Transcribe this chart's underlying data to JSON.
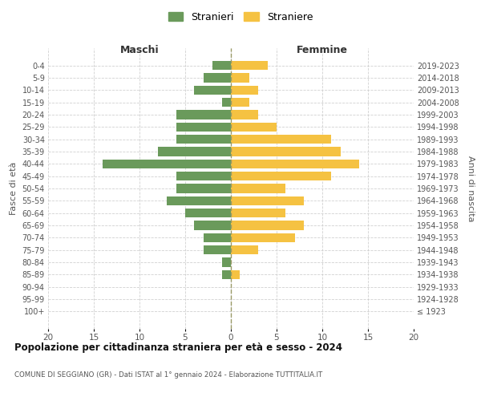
{
  "age_groups": [
    "0-4",
    "5-9",
    "10-14",
    "15-19",
    "20-24",
    "25-29",
    "30-34",
    "35-39",
    "40-44",
    "45-49",
    "50-54",
    "55-59",
    "60-64",
    "65-69",
    "70-74",
    "75-79",
    "80-84",
    "85-89",
    "90-94",
    "95-99",
    "100+"
  ],
  "birth_years": [
    "2019-2023",
    "2014-2018",
    "2009-2013",
    "2004-2008",
    "1999-2003",
    "1994-1998",
    "1989-1993",
    "1984-1988",
    "1979-1983",
    "1974-1978",
    "1969-1973",
    "1964-1968",
    "1959-1963",
    "1954-1958",
    "1949-1953",
    "1944-1948",
    "1939-1943",
    "1934-1938",
    "1929-1933",
    "1924-1928",
    "≤ 1923"
  ],
  "maschi": [
    2,
    3,
    4,
    1,
    6,
    6,
    6,
    8,
    14,
    6,
    6,
    7,
    5,
    4,
    3,
    3,
    1,
    1,
    0,
    0,
    0
  ],
  "femmine": [
    4,
    2,
    3,
    2,
    3,
    5,
    11,
    12,
    14,
    11,
    6,
    8,
    6,
    8,
    7,
    3,
    0,
    1,
    0,
    0,
    0
  ],
  "maschi_color": "#6a9a5b",
  "femmine_color": "#f5c242",
  "background_color": "#ffffff",
  "grid_color": "#cccccc",
  "title": "Popolazione per cittadinanza straniera per età e sesso - 2024",
  "subtitle": "COMUNE DI SEGGIANO (GR) - Dati ISTAT al 1° gennaio 2024 - Elaborazione TUTTITALIA.IT",
  "xlabel_left": "Maschi",
  "xlabel_right": "Femmine",
  "ylabel_left": "Fasce di età",
  "ylabel_right": "Anni di nascita",
  "legend_stranieri": "Stranieri",
  "legend_straniere": "Straniere",
  "xlim": 20,
  "bar_height": 0.75
}
